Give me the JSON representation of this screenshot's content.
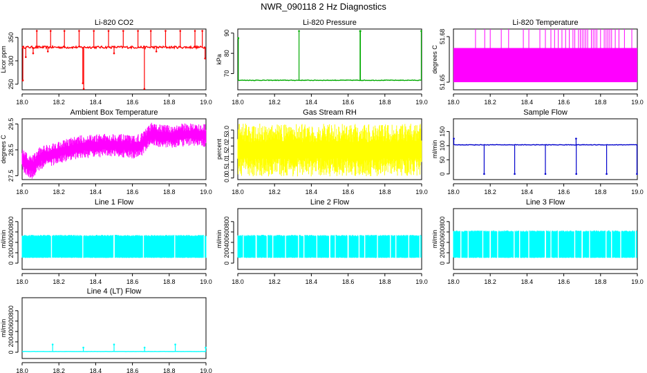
{
  "figure": {
    "title": "NWR_090118  2 Hz Diagnostics"
  },
  "chart_data": [
    {
      "type": "line",
      "title": "Li-820 CO2",
      "ylabel": "Licor ppm",
      "xlim": [
        18.0,
        19.0
      ],
      "ylim": [
        238,
        368
      ],
      "xticks": [
        18.0,
        18.2,
        18.4,
        18.6,
        18.8,
        19.0
      ],
      "xtick_labels": [
        "18.0",
        "18.2",
        "18.4",
        "18.6",
        "18.8",
        "19.0"
      ],
      "yticks": [
        250,
        300,
        350
      ],
      "ytick_labels": [
        "250",
        "300",
        "350"
      ],
      "color": "#ff0000",
      "series": [
        {
          "name": "CO2",
          "baseline": 329,
          "noise": 5,
          "spikes": [
            [
              18.004,
              258
            ],
            [
              18.02,
              308
            ],
            [
              18.06,
              316
            ],
            [
              18.08,
              364
            ],
            [
              18.14,
              320
            ],
            [
              18.155,
              364
            ],
            [
              18.23,
              364
            ],
            [
              18.31,
              364
            ],
            [
              18.33,
              252
            ],
            [
              18.335,
              240
            ],
            [
              18.39,
              364
            ],
            [
              18.47,
              364
            ],
            [
              18.5,
              316
            ],
            [
              18.55,
              364
            ],
            [
              18.63,
              364
            ],
            [
              18.665,
              240
            ],
            [
              18.7,
              364
            ],
            [
              18.73,
              320
            ],
            [
              18.78,
              364
            ],
            [
              18.86,
              364
            ],
            [
              18.94,
              364
            ],
            [
              18.98,
              364
            ],
            [
              18.995,
              305
            ]
          ]
        }
      ]
    },
    {
      "type": "line",
      "title": "Li-820 Pressure",
      "ylabel": "kPa",
      "xlim": [
        18.0,
        19.0
      ],
      "ylim": [
        62,
        92
      ],
      "xticks": [
        18.0,
        18.2,
        18.4,
        18.6,
        18.8,
        19.0
      ],
      "xtick_labels": [
        "18.0",
        "18.2",
        "18.4",
        "18.6",
        "18.8",
        "19.0"
      ],
      "yticks": [
        70,
        80,
        90
      ],
      "ytick_labels": [
        "70",
        "80",
        "90"
      ],
      "color": "#00aa00",
      "series": [
        {
          "name": "Pressure",
          "baseline": 66.7,
          "noise": 0.3,
          "spikes": [
            [
              18.003,
              87.5
            ],
            [
              18.333,
              91
            ],
            [
              18.665,
              91
            ],
            [
              18.667,
              91
            ],
            [
              18.998,
              91
            ]
          ]
        }
      ]
    },
    {
      "type": "line",
      "title": "Li-820 Temperature",
      "ylabel": "degrees C",
      "xlim": [
        18.0,
        19.0
      ],
      "ylim": [
        51.645,
        51.685
      ],
      "xticks": [
        18.0,
        18.2,
        18.4,
        18.6,
        18.8,
        19.0
      ],
      "xtick_labels": [
        "18.0",
        "18.2",
        "18.4",
        "18.6",
        "18.8",
        "19.0"
      ],
      "yticks": [
        51.65,
        51.68
      ],
      "ytick_labels": [
        "51.65",
        "51.68"
      ],
      "color": "#ff00ff",
      "series": [
        {
          "name": "Temperature",
          "band": [
            51.65,
            51.6725
          ],
          "spikes_top": 51.685,
          "spike_x": [
            18.12,
            18.17,
            18.2,
            18.26,
            18.3,
            18.38,
            18.41,
            18.47,
            18.5,
            18.53,
            18.55,
            18.57,
            18.59,
            18.61,
            18.63,
            18.65,
            18.66,
            18.68,
            18.69,
            18.7,
            18.71,
            18.72,
            18.73,
            18.75,
            18.76,
            18.77,
            18.78,
            18.8,
            18.82,
            18.83,
            18.84,
            18.85,
            18.86,
            18.88,
            18.9,
            18.93,
            18.97
          ]
        }
      ]
    },
    {
      "type": "line",
      "title": "Ambient Box Temperature",
      "ylabel": "degrees C",
      "xlim": [
        18.0,
        19.0
      ],
      "ylim": [
        27.35,
        29.7
      ],
      "xticks": [
        18.0,
        18.2,
        18.4,
        18.6,
        18.8,
        19.0
      ],
      "xtick_labels": [
        "18.0",
        "18.2",
        "18.4",
        "18.6",
        "18.8",
        "19.0"
      ],
      "yticks": [
        27.5,
        28.5,
        29.5
      ],
      "ytick_labels": [
        "27.5",
        "28.5",
        "29.5"
      ],
      "color": "#ff00ff",
      "series": [
        {
          "name": "Ambient",
          "trend_x": [
            18.0,
            18.05,
            18.1,
            18.2,
            18.3,
            18.4,
            18.5,
            18.6,
            18.65,
            18.7,
            18.8,
            18.9,
            19.0
          ],
          "trend_y": [
            28.1,
            27.8,
            28.2,
            28.4,
            28.6,
            28.65,
            28.7,
            28.6,
            28.7,
            29.1,
            29.0,
            29.1,
            29.05
          ],
          "amp": 0.45
        }
      ]
    },
    {
      "type": "line",
      "title": "Gas Stream RH",
      "ylabel": "percent",
      "xlim": [
        18.0,
        19.0
      ],
      "ylim": [
        -0.1,
        3.7
      ],
      "xticks": [
        18.0,
        18.2,
        18.4,
        18.6,
        18.8,
        19.0
      ],
      "xtick_labels": [
        "18.0",
        "18.2",
        "18.4",
        "18.6",
        "18.8",
        "19.0"
      ],
      "yticks": [
        0.0,
        0.5,
        1.0,
        1.5,
        2.0,
        2.5,
        3.0
      ],
      "ytick_labels": [
        "0.0",
        "0.5",
        "1.0",
        "1.5",
        "2.0",
        "2.5",
        "3.0"
      ],
      "color": "#ffff00",
      "series": [
        {
          "name": "RH",
          "band": [
            0.1,
            3.4
          ]
        }
      ]
    },
    {
      "type": "line",
      "title": "Sample Flow",
      "ylabel": "ml/min",
      "xlim": [
        18.0,
        19.0
      ],
      "ylim": [
        -20,
        195
      ],
      "xticks": [
        18.0,
        18.2,
        18.4,
        18.6,
        18.8,
        19.0
      ],
      "xtick_labels": [
        "18.0",
        "18.2",
        "18.4",
        "18.6",
        "18.8",
        "19.0"
      ],
      "yticks": [
        0,
        50,
        100,
        150
      ],
      "ytick_labels": [
        "0",
        "50",
        "100",
        "150"
      ],
      "color": "#0000cc",
      "series": [
        {
          "name": "Sample",
          "baseline": 103,
          "noise": 2,
          "spikes": [
            [
              18.002,
              125
            ],
            [
              18.167,
              0
            ],
            [
              18.333,
              0
            ],
            [
              18.5,
              0
            ],
            [
              18.667,
              125
            ],
            [
              18.668,
              0
            ],
            [
              18.833,
              0
            ],
            [
              18.998,
              0
            ]
          ]
        }
      ]
    },
    {
      "type": "line",
      "title": "Line 1 Flow",
      "ylabel": "ml/min",
      "xlim": [
        18.0,
        19.0
      ],
      "ylim": [
        -120,
        1050
      ],
      "xticks": [
        18.0,
        18.2,
        18.4,
        18.6,
        18.8,
        19.0
      ],
      "xtick_labels": [
        "18.0",
        "18.2",
        "18.4",
        "18.6",
        "18.8",
        "19.0"
      ],
      "yticks": [
        0,
        200,
        400,
        600,
        800
      ],
      "ytick_labels": [
        "0",
        "200",
        "400",
        "600",
        "800"
      ],
      "color": "#00ffff",
      "series": [
        {
          "name": "Line 1",
          "band": [
            100,
            545
          ],
          "gaps": [
            18.16,
            18.33,
            18.5,
            18.66,
            18.83,
            18.99
          ]
        }
      ]
    },
    {
      "type": "line",
      "title": "Line 2 Flow",
      "ylabel": "ml/min",
      "xlim": [
        18.0,
        19.0
      ],
      "ylim": [
        -120,
        1050
      ],
      "xticks": [
        18.0,
        18.2,
        18.4,
        18.6,
        18.8,
        19.0
      ],
      "xtick_labels": [
        "18.0",
        "18.2",
        "18.4",
        "18.6",
        "18.8",
        "19.0"
      ],
      "yticks": [
        0,
        200,
        400,
        600,
        800
      ],
      "ytick_labels": [
        "0",
        "200",
        "400",
        "600",
        "800"
      ],
      "color": "#00ffff",
      "series": [
        {
          "name": "Line 2",
          "band": [
            100,
            545
          ],
          "gaps": [
            18.03,
            18.1,
            18.16,
            18.19,
            18.26,
            18.33,
            18.36,
            18.43,
            18.5,
            18.53,
            18.6,
            18.66,
            18.69,
            18.76,
            18.83,
            18.86,
            18.93,
            18.99
          ]
        }
      ]
    },
    {
      "type": "line",
      "title": "Line 3 Flow",
      "ylabel": "ml/min",
      "xlim": [
        18.0,
        19.0
      ],
      "ylim": [
        -120,
        1050
      ],
      "xticks": [
        18.0,
        18.2,
        18.4,
        18.6,
        18.8,
        19.0
      ],
      "xtick_labels": [
        "18.0",
        "18.2",
        "18.4",
        "18.6",
        "18.8",
        "19.0"
      ],
      "yticks": [
        0,
        200,
        400,
        600,
        800
      ],
      "ytick_labels": [
        "0",
        "200",
        "400",
        "600",
        "800"
      ],
      "color": "#00ffff",
      "series": [
        {
          "name": "Line 3",
          "band": [
            100,
            630
          ],
          "gaps": [
            18.04,
            18.08,
            18.16,
            18.2,
            18.24,
            18.33,
            18.36,
            18.41,
            18.5,
            18.53,
            18.57,
            18.66,
            18.7,
            18.74,
            18.83,
            18.86,
            18.91,
            18.99
          ]
        }
      ]
    },
    {
      "type": "line",
      "title": "Line 4 (LT) Flow",
      "ylabel": "ml/min",
      "xlim": [
        18.0,
        19.0
      ],
      "ylim": [
        -120,
        1050
      ],
      "xticks": [
        18.0,
        18.2,
        18.4,
        18.6,
        18.8,
        19.0
      ],
      "xtick_labels": [
        "18.0",
        "18.2",
        "18.4",
        "18.6",
        "18.8",
        "19.0"
      ],
      "yticks": [
        0,
        200,
        400,
        600,
        800
      ],
      "ytick_labels": [
        "0",
        "200",
        "400",
        "600",
        "800"
      ],
      "color": "#00ffff",
      "series": [
        {
          "name": "Line 4",
          "baseline": 15,
          "noise": 3,
          "spikes": [
            [
              18.166,
              150
            ],
            [
              18.333,
              90
            ],
            [
              18.5,
              150
            ],
            [
              18.666,
              90
            ],
            [
              18.833,
              150
            ],
            [
              18.998,
              90
            ]
          ]
        }
      ]
    }
  ]
}
